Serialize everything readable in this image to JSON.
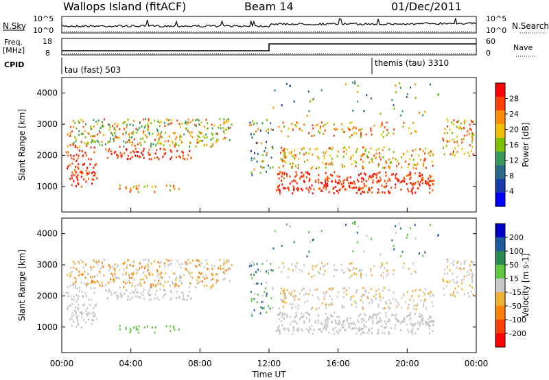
{
  "header": {
    "station": "Wallops Island (fitACF)",
    "beam": "Beam 14",
    "date": "01/Dec/2011"
  },
  "panels": {
    "nsky_label": "N.Sky",
    "nsearch_label": "N.Search",
    "freq_label_1": "Freq.",
    "freq_label_2": "[MHz]",
    "nave_label": "Nave",
    "cpid_label": "CPID",
    "nsky_ticks": [
      "10^5",
      "10^0"
    ],
    "nsearch_ticks": [
      "10^5",
      "10^0"
    ],
    "freq_ticks": [
      "18",
      "8"
    ],
    "nave_ticks": [
      "60",
      "0"
    ],
    "cpid_1": "tau (fast) 503",
    "cpid_2": "themis (tau) 3310"
  },
  "chart_data": [
    {
      "type": "heatmap",
      "title": "",
      "xlabel": "",
      "ylabel": "Slant Range [km]",
      "colorbar_label": "Power [dB]",
      "colorbar_ticks": [
        "28",
        "24",
        "20",
        "16",
        "12",
        "8",
        "4"
      ],
      "colorbar_colors": [
        "#ff0000",
        "#ff4000",
        "#ff8c00",
        "#f0c000",
        "#7cc000",
        "#3a9a5a",
        "#2a6a8a",
        "#1a3ab0",
        "#0000ff"
      ],
      "x_ticks": [
        "00:00",
        "04:00",
        "08:00",
        "12:00",
        "16:00",
        "20:00",
        "00:00"
      ],
      "y_ticks": [
        "1000",
        "2000",
        "3000",
        "4000"
      ],
      "ylim": [
        180,
        4500
      ],
      "grid": false
    },
    {
      "type": "heatmap",
      "title": "",
      "xlabel": "Time UT",
      "ylabel": "Slant Range [km]",
      "colorbar_label": "Velocity [m s-1]",
      "colorbar_ticks": [
        "200",
        "100",
        "50",
        "15",
        "-15",
        "-50",
        "-100",
        "-200"
      ],
      "colorbar_colors": [
        "#0000c8",
        "#1e5aa0",
        "#2a8a50",
        "#60c840",
        "#c8c8c8",
        "#f0b030",
        "#ff8000",
        "#ff4000",
        "#ff0000"
      ],
      "x_ticks": [
        "00:00",
        "04:00",
        "08:00",
        "12:00",
        "16:00",
        "20:00",
        "00:00"
      ],
      "y_ticks": [
        "1000",
        "2000",
        "3000",
        "4000"
      ],
      "ylim": [
        180,
        4500
      ],
      "grid": false
    }
  ]
}
